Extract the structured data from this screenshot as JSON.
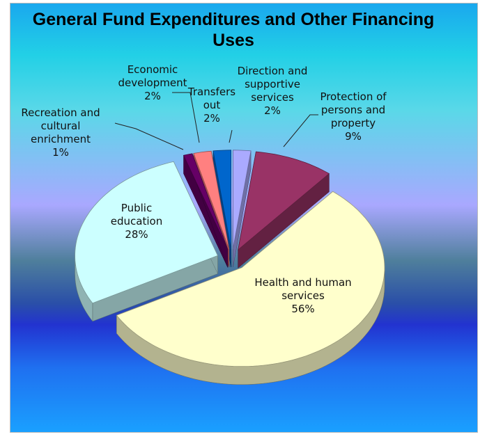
{
  "chart_data": {
    "type": "pie",
    "title": "General Fund Expenditures and Other Financing Uses",
    "categories": [
      "Direction and supportive services",
      "Protection of persons and property",
      "Health and human services",
      "Public education",
      "Recreation and cultural enrichment",
      "Economic development",
      "Transfers out"
    ],
    "values": [
      2,
      9,
      56,
      28,
      1,
      2,
      2
    ],
    "value_labels": [
      "2%",
      "9%",
      "56%",
      "28%",
      "1%",
      "2%",
      "2%"
    ],
    "colors": [
      "#aaaaff",
      "#993366",
      "#ffffcc",
      "#ccffff",
      "#660066",
      "#ff8080",
      "#0066cc"
    ]
  }
}
